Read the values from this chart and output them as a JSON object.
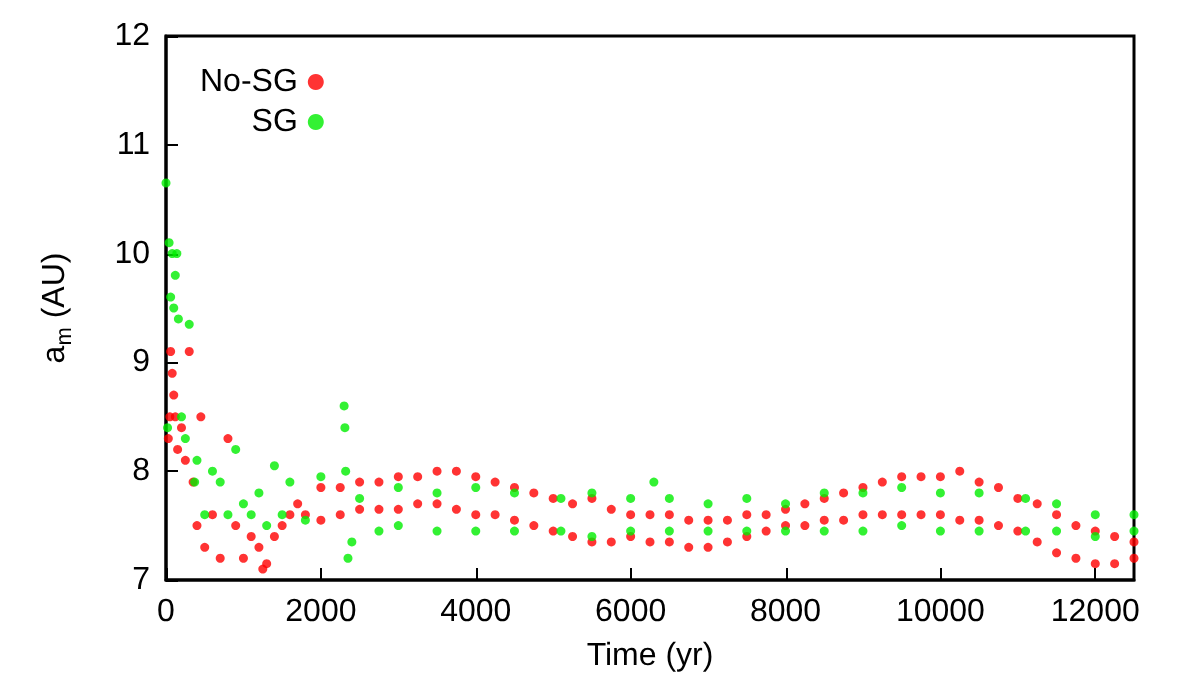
{
  "chart_data": {
    "type": "scatter",
    "xlabel": "Time (yr)",
    "ylabel": "a$_{m}$ (AU)",
    "xlim": [
      0,
      12500
    ],
    "xticks": [
      0,
      2000,
      4000,
      6000,
      8000,
      10000,
      12000
    ],
    "ylim": [
      7,
      12
    ],
    "yticks": [
      7,
      8,
      9,
      10,
      11,
      12
    ],
    "grid": false,
    "legend": "top left",
    "marker": "circle",
    "series": [
      {
        "name": "No-SG",
        "color": "#ff0000",
        "x": [
          30,
          50,
          60,
          80,
          100,
          120,
          150,
          200,
          250,
          300,
          350,
          400,
          450,
          500,
          600,
          700,
          800,
          900,
          1000,
          1100,
          1200,
          1250,
          1300,
          1400,
          1500,
          1600,
          1700,
          1800,
          2000,
          2000,
          2250,
          2250,
          2500,
          2500,
          2750,
          2750,
          3000,
          3000,
          3250,
          3250,
          3500,
          3500,
          3750,
          3750,
          4000,
          4000,
          4250,
          4250,
          4500,
          4500,
          4750,
          4750,
          5000,
          5000,
          5250,
          5250,
          5500,
          5500,
          5750,
          5750,
          6000,
          6000,
          6250,
          6250,
          6500,
          6500,
          6750,
          6750,
          7000,
          7000,
          7250,
          7250,
          7500,
          7500,
          7750,
          7750,
          8000,
          8000,
          8250,
          8250,
          8500,
          8500,
          8750,
          8750,
          9000,
          9000,
          9250,
          9250,
          9500,
          9500,
          9750,
          9750,
          10000,
          10000,
          10250,
          10250,
          10500,
          10500,
          10750,
          10750,
          11000,
          11000,
          11250,
          11250,
          11500,
          11500,
          11750,
          11750,
          12000,
          12000,
          12250,
          12250,
          12500,
          12500
        ],
        "values": [
          8.3,
          8.5,
          9.1,
          8.9,
          8.7,
          8.5,
          8.2,
          8.4,
          8.1,
          9.1,
          7.9,
          7.5,
          8.5,
          7.3,
          7.6,
          7.2,
          8.3,
          7.5,
          7.2,
          7.4,
          7.3,
          7.1,
          7.15,
          7.4,
          7.5,
          7.6,
          7.7,
          7.6,
          7.85,
          7.55,
          7.85,
          7.6,
          7.9,
          7.65,
          7.9,
          7.65,
          7.95,
          7.65,
          7.95,
          7.7,
          8.0,
          7.7,
          8.0,
          7.65,
          7.95,
          7.6,
          7.9,
          7.6,
          7.85,
          7.55,
          7.8,
          7.5,
          7.75,
          7.45,
          7.7,
          7.4,
          7.75,
          7.35,
          7.65,
          7.35,
          7.6,
          7.4,
          7.6,
          7.35,
          7.6,
          7.35,
          7.55,
          7.3,
          7.55,
          7.3,
          7.55,
          7.35,
          7.6,
          7.4,
          7.6,
          7.45,
          7.65,
          7.5,
          7.7,
          7.5,
          7.75,
          7.55,
          7.8,
          7.55,
          7.85,
          7.6,
          7.9,
          7.6,
          7.95,
          7.6,
          7.95,
          7.6,
          7.95,
          7.6,
          8.0,
          7.55,
          7.9,
          7.55,
          7.85,
          7.5,
          7.75,
          7.45,
          7.7,
          7.35,
          7.6,
          7.25,
          7.5,
          7.2,
          7.45,
          7.15,
          7.4,
          7.15,
          7.35,
          7.2
        ]
      },
      {
        "name": "SG",
        "color": "#00ee00",
        "x": [
          0,
          20,
          40,
          60,
          80,
          100,
          120,
          140,
          160,
          200,
          250,
          300,
          370,
          400,
          500,
          600,
          700,
          800,
          900,
          1000,
          1100,
          1200,
          1300,
          1400,
          1500,
          1600,
          1800,
          2000,
          2300,
          2310,
          2320,
          2350,
          2400,
          2500,
          2750,
          3000,
          3000,
          3500,
          3500,
          4000,
          4000,
          4500,
          4500,
          5100,
          5100,
          5500,
          5500,
          6000,
          6000,
          6300,
          6500,
          6500,
          7000,
          7000,
          7500,
          7500,
          8000,
          8000,
          8500,
          8500,
          9000,
          9000,
          9500,
          9500,
          10000,
          10000,
          10500,
          10500,
          11100,
          11100,
          11500,
          11500,
          12000,
          12000,
          12500,
          12500
        ],
        "values": [
          10.65,
          8.4,
          10.1,
          9.6,
          10.0,
          9.5,
          9.8,
          10.0,
          9.4,
          8.5,
          8.3,
          9.35,
          7.9,
          8.1,
          7.6,
          8.0,
          7.9,
          7.6,
          8.2,
          7.7,
          7.6,
          7.8,
          7.5,
          8.05,
          7.6,
          7.9,
          7.55,
          7.95,
          8.6,
          8.4,
          8.0,
          7.2,
          7.35,
          7.75,
          7.45,
          7.85,
          7.5,
          7.8,
          7.45,
          7.85,
          7.45,
          7.8,
          7.45,
          7.75,
          7.45,
          7.8,
          7.4,
          7.75,
          7.45,
          7.9,
          7.75,
          7.45,
          7.7,
          7.45,
          7.75,
          7.45,
          7.7,
          7.45,
          7.8,
          7.45,
          7.8,
          7.45,
          7.85,
          7.5,
          7.8,
          7.45,
          7.8,
          7.45,
          7.75,
          7.45,
          7.7,
          7.45,
          7.6,
          7.4,
          7.6,
          7.45
        ]
      }
    ]
  }
}
